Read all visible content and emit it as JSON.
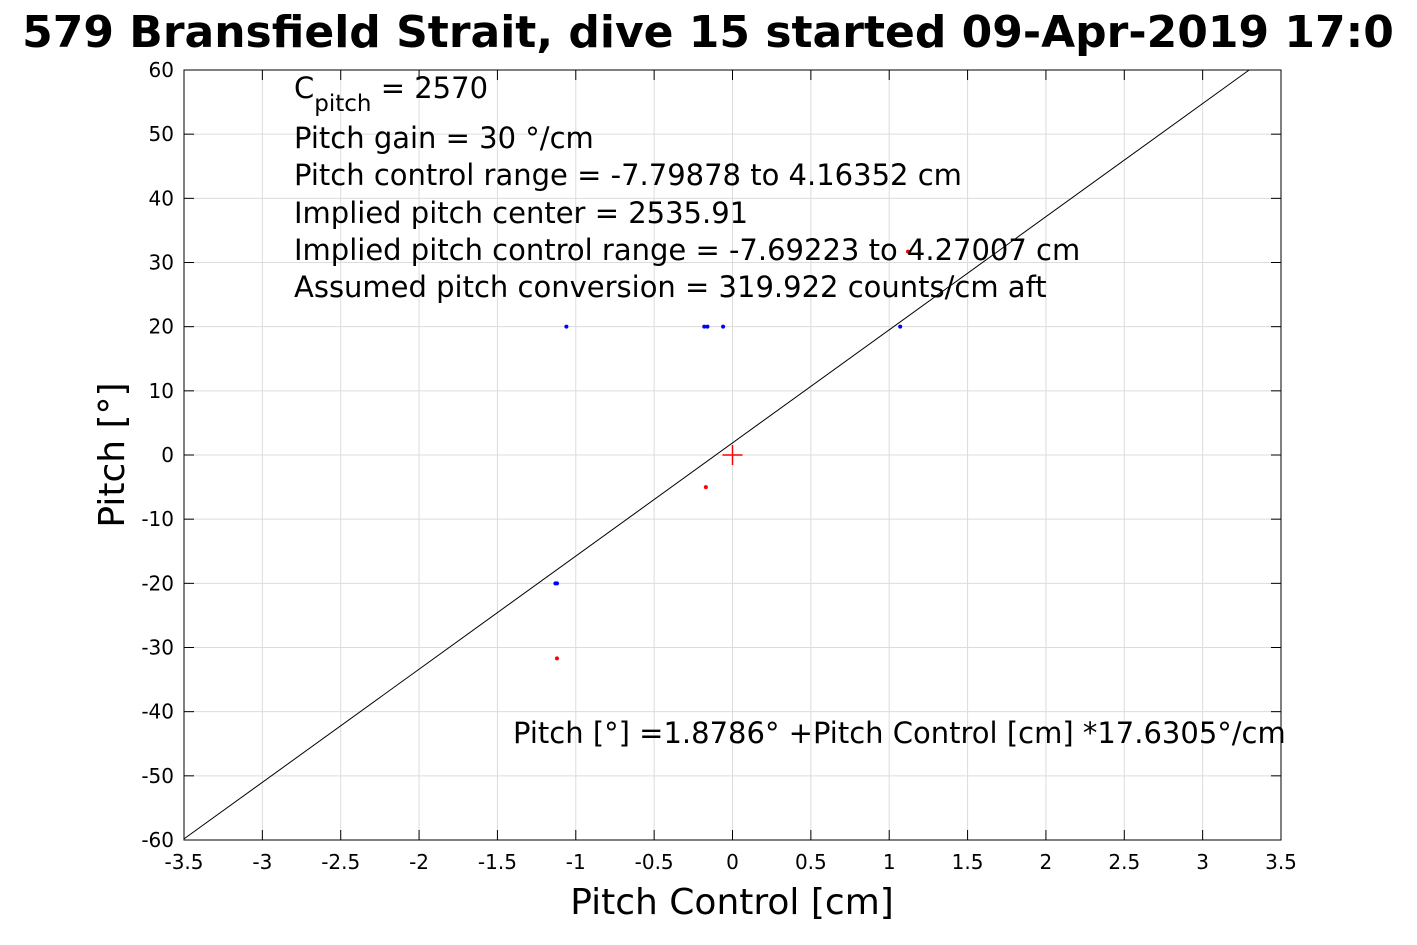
{
  "chart_data": {
    "type": "scatter",
    "title": "579 Bransfield Strait, dive 15 started 09-Apr-2019 17:0",
    "xlabel": "Pitch Control [cm]",
    "ylabel": "Pitch [°]",
    "xlim": [
      -3.5,
      3.5
    ],
    "ylim": [
      -60,
      60
    ],
    "xticks": [
      -3.5,
      -3,
      -2.5,
      -2,
      -1.5,
      -1,
      -0.5,
      0,
      0.5,
      1,
      1.5,
      2,
      2.5,
      3,
      3.5
    ],
    "yticks": [
      -60,
      -50,
      -40,
      -30,
      -20,
      -10,
      0,
      10,
      20,
      30,
      40,
      50,
      60
    ],
    "grid": true,
    "series": [
      {
        "color": "#0000ff",
        "marker": "dot",
        "points": [
          {
            "x": -1.13,
            "y": -20
          },
          {
            "x": -1.12,
            "y": -20
          },
          {
            "x": -1.06,
            "y": 20
          },
          {
            "x": -0.18,
            "y": 20
          },
          {
            "x": -0.16,
            "y": 20
          },
          {
            "x": -0.06,
            "y": 20
          },
          {
            "x": 1.07,
            "y": 20
          }
        ]
      },
      {
        "color": "#ff0000",
        "marker": "dot",
        "points": [
          {
            "x": -1.12,
            "y": -31.7
          },
          {
            "x": -0.17,
            "y": -5
          },
          {
            "x": 1.12,
            "y": 31.7
          }
        ]
      }
    ],
    "center_marker": {
      "x": 0,
      "y": 0,
      "color": "#ff0000",
      "symbol": "plus"
    },
    "fit_line": {
      "intercept": 1.8786,
      "slope": 17.6305,
      "color": "#000000"
    },
    "annotations": {
      "c_pitch_symbol": "C",
      "c_pitch_subscript": "pitch",
      "c_pitch_value": " = 2570",
      "lines": [
        "Pitch gain = 30 °/cm",
        "Pitch control range = -7.79878 to 4.16352 cm",
        "Implied pitch center = 2535.91",
        "Implied pitch control range = -7.69223 to 4.27007 cm",
        "Assumed pitch conversion = 319.922 counts/cm aft"
      ],
      "equation": "Pitch [°] =1.8786° +Pitch Control [cm] *17.6305°/cm"
    }
  }
}
